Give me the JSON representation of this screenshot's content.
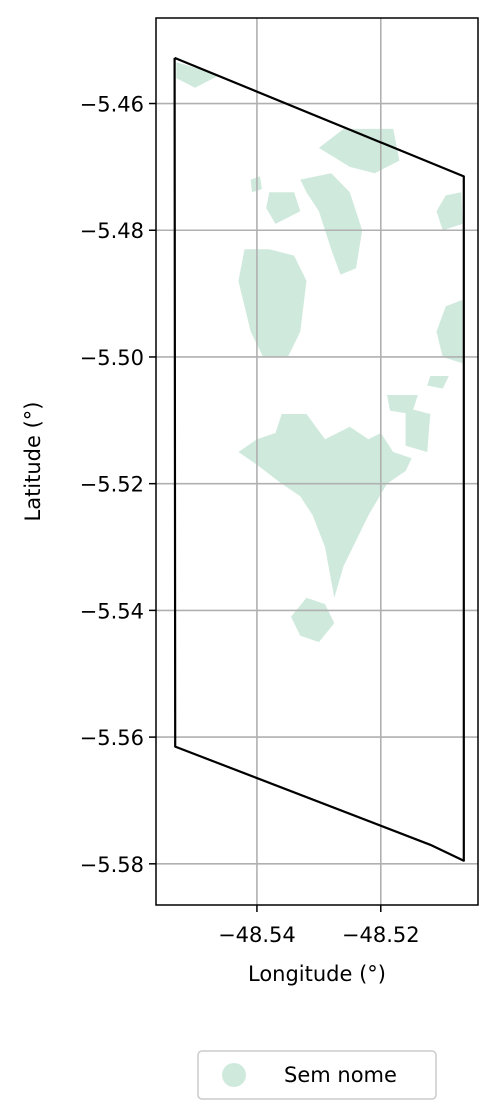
{
  "chart_data": {
    "type": "map",
    "xlabel": "Longitude (°)",
    "ylabel": "Latitude (°)",
    "xlim": [
      -48.5563,
      -48.5043
    ],
    "ylim": [
      -5.5865,
      -5.4465
    ],
    "x_ticks": [
      -48.54,
      -48.52
    ],
    "x_tick_labels": [
      "−48.54",
      "−48.52"
    ],
    "y_ticks": [
      -5.46,
      -5.48,
      -5.5,
      -5.52,
      -5.54,
      -5.56,
      -5.58
    ],
    "y_tick_labels": [
      "−5.46",
      "−5.48",
      "−5.50",
      "−5.52",
      "−5.54",
      "−5.56",
      "−5.58"
    ],
    "grid": true,
    "boundary": [
      [
        -48.5533,
        -5.4528
      ],
      [
        -48.5066,
        -5.4715
      ],
      [
        -48.5066,
        -5.5795
      ],
      [
        -48.512,
        -5.577
      ],
      [
        -48.5532,
        -5.5615
      ],
      [
        -48.5533,
        -5.4528
      ]
    ],
    "fill_color": "#cfeadc",
    "regions": [
      [
        [
          -48.553,
          -5.4535
        ],
        [
          -48.546,
          -5.4555
        ],
        [
          -48.55,
          -5.4575
        ],
        [
          -48.553,
          -5.456
        ]
      ],
      [
        [
          -48.526,
          -5.464
        ],
        [
          -48.518,
          -5.464
        ],
        [
          -48.517,
          -5.469
        ],
        [
          -48.521,
          -5.471
        ],
        [
          -48.525,
          -5.47
        ],
        [
          -48.53,
          -5.467
        ]
      ],
      [
        [
          -48.541,
          -5.472
        ],
        [
          -48.5395,
          -5.4715
        ],
        [
          -48.5392,
          -5.4735
        ],
        [
          -48.5408,
          -5.474
        ]
      ],
      [
        [
          -48.533,
          -5.472
        ],
        [
          -48.528,
          -5.471
        ],
        [
          -48.525,
          -5.474
        ],
        [
          -48.523,
          -5.48
        ],
        [
          -48.524,
          -5.486
        ],
        [
          -48.5265,
          -5.487
        ],
        [
          -48.528,
          -5.483
        ],
        [
          -48.53,
          -5.477
        ],
        [
          -48.532,
          -5.474
        ]
      ],
      [
        [
          -48.538,
          -5.474
        ],
        [
          -48.534,
          -5.474
        ],
        [
          -48.533,
          -5.477
        ],
        [
          -48.537,
          -5.479
        ],
        [
          -48.5385,
          -5.4765
        ]
      ],
      [
        [
          -48.542,
          -5.483
        ],
        [
          -48.538,
          -5.483
        ],
        [
          -48.534,
          -5.484
        ],
        [
          -48.532,
          -5.488
        ],
        [
          -48.533,
          -5.496
        ],
        [
          -48.535,
          -5.5
        ],
        [
          -48.539,
          -5.5
        ],
        [
          -48.541,
          -5.496
        ],
        [
          -48.543,
          -5.488
        ]
      ],
      [
        [
          -48.5095,
          -5.4745
        ],
        [
          -48.507,
          -5.474
        ],
        [
          -48.5068,
          -5.479
        ],
        [
          -48.51,
          -5.48
        ],
        [
          -48.511,
          -5.477
        ]
      ],
      [
        [
          -48.5095,
          -5.492
        ],
        [
          -48.5068,
          -5.491
        ],
        [
          -48.5068,
          -5.501
        ],
        [
          -48.51,
          -5.5
        ],
        [
          -48.511,
          -5.496
        ]
      ],
      [
        [
          -48.512,
          -5.503
        ],
        [
          -48.509,
          -5.503
        ],
        [
          -48.51,
          -5.505
        ],
        [
          -48.5125,
          -5.5045
        ]
      ],
      [
        [
          -48.519,
          -5.506
        ],
        [
          -48.514,
          -5.506
        ],
        [
          -48.515,
          -5.509
        ],
        [
          -48.5185,
          -5.5085
        ]
      ],
      [
        [
          -48.536,
          -5.509
        ],
        [
          -48.532,
          -5.509
        ],
        [
          -48.529,
          -5.513
        ],
        [
          -48.525,
          -5.511
        ],
        [
          -48.522,
          -5.513
        ],
        [
          -48.52,
          -5.512
        ],
        [
          -48.518,
          -5.515
        ],
        [
          -48.515,
          -5.516
        ],
        [
          -48.516,
          -5.518
        ],
        [
          -48.519,
          -5.52
        ],
        [
          -48.522,
          -5.525
        ],
        [
          -48.524,
          -5.529
        ],
        [
          -48.526,
          -5.533
        ],
        [
          -48.5275,
          -5.538
        ],
        [
          -48.529,
          -5.53
        ],
        [
          -48.531,
          -5.525
        ],
        [
          -48.533,
          -5.522
        ],
        [
          -48.536,
          -5.52
        ],
        [
          -48.54,
          -5.517
        ],
        [
          -48.543,
          -5.515
        ],
        [
          -48.54,
          -5.513
        ],
        [
          -48.537,
          -5.512
        ]
      ],
      [
        [
          -48.516,
          -5.508
        ],
        [
          -48.512,
          -5.509
        ],
        [
          -48.5125,
          -5.515
        ],
        [
          -48.516,
          -5.514
        ]
      ],
      [
        [
          -48.532,
          -5.538
        ],
        [
          -48.529,
          -5.539
        ],
        [
          -48.5275,
          -5.542
        ],
        [
          -48.53,
          -5.545
        ],
        [
          -48.533,
          -5.544
        ],
        [
          -48.5345,
          -5.541
        ]
      ]
    ],
    "legend": {
      "placement": "bottom-center",
      "entries": [
        {
          "label": "Sem nome",
          "color": "#cfeadc"
        }
      ]
    }
  }
}
